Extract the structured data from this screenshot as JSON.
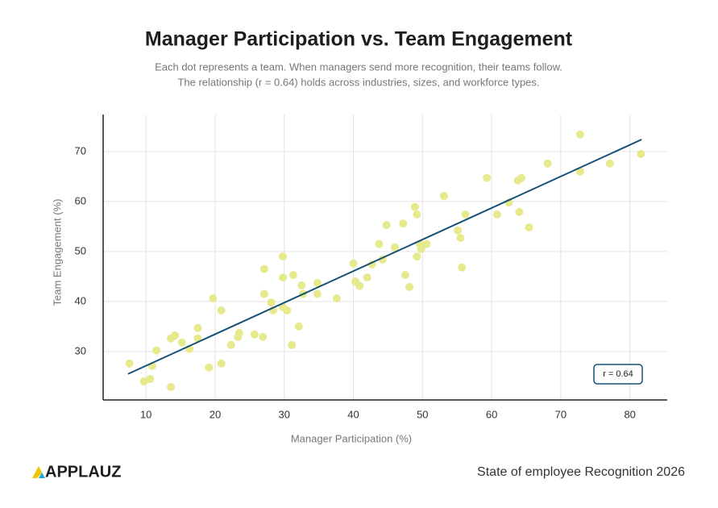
{
  "chart_data": {
    "type": "scatter",
    "title": "Manager Participation vs. Team Engagement",
    "subtitle": [
      "Each dot represents a team. When managers send more recognition, their teams follow.",
      "The relationship (r = 0.64) holds across industries, sizes, and workforce types."
    ],
    "x_label": "Manager Participation (%)",
    "y_label": "Team Engagement (%)",
    "xlim": [
      3.8,
      85.4
    ],
    "ylim": [
      20.3,
      77.4
    ],
    "xticks": [
      10,
      20,
      30,
      40,
      50,
      60,
      70,
      80
    ],
    "yticks": [
      30,
      40,
      50,
      60,
      70
    ],
    "grid": true,
    "series": [
      {
        "color": "#e6e98c",
        "x": [
          7.6,
          9.7,
          10.6,
          10.9,
          11.5,
          13.6,
          13.6,
          14.2,
          15.2,
          16.3,
          17.5,
          17.5,
          19.1,
          19.7,
          20.9,
          20.9,
          22.3,
          23.3,
          23.5,
          25.7,
          26.9,
          27.1,
          27.1,
          28.1,
          28.4,
          29.8,
          29.8,
          29.8,
          30.4,
          31.1,
          31.3,
          32.1,
          32.5,
          32.7,
          34.8,
          34.8,
          37.6,
          40.0,
          40.3,
          40.9,
          42.0,
          42.7,
          43.7,
          44.2,
          44.8,
          46.0,
          47.2,
          47.5,
          48.1,
          48.9,
          49.2,
          49.2,
          49.6,
          49.8,
          50.6,
          53.1,
          55.1,
          55.5,
          55.7,
          56.2,
          59.3,
          60.8,
          62.5,
          63.8,
          64.0,
          64.3,
          65.4,
          68.1,
          72.8,
          72.8,
          77.1,
          81.6
        ],
        "values": [
          27.6,
          24.0,
          24.5,
          27.1,
          30.2,
          22.9,
          32.6,
          33.2,
          31.8,
          30.5,
          34.7,
          32.6,
          26.8,
          40.6,
          38.2,
          27.6,
          31.3,
          32.9,
          33.7,
          33.4,
          32.9,
          46.5,
          41.5,
          39.8,
          38.2,
          49.0,
          44.8,
          38.9,
          38.2,
          31.3,
          45.3,
          35.0,
          43.2,
          41.5,
          43.7,
          41.5,
          40.6,
          47.6,
          44.0,
          43.1,
          44.8,
          47.4,
          51.5,
          48.4,
          55.3,
          50.8,
          55.6,
          45.3,
          42.9,
          58.9,
          49.0,
          57.4,
          51.5,
          50.5,
          51.5,
          61.1,
          54.2,
          52.7,
          46.8,
          57.4,
          64.7,
          57.4,
          59.8,
          64.2,
          57.9,
          64.7,
          54.8,
          67.6,
          73.4,
          66.0,
          67.6,
          69.5
        ]
      }
    ],
    "trendline": {
      "color": "#14507a",
      "x": [
        7.4,
        81.7
      ],
      "values": [
        25.5,
        72.4
      ]
    },
    "annotation": "r = 0.64"
  },
  "footer": {
    "logo": "APPLAUZ",
    "report": "State of employee Recognition 2026"
  }
}
